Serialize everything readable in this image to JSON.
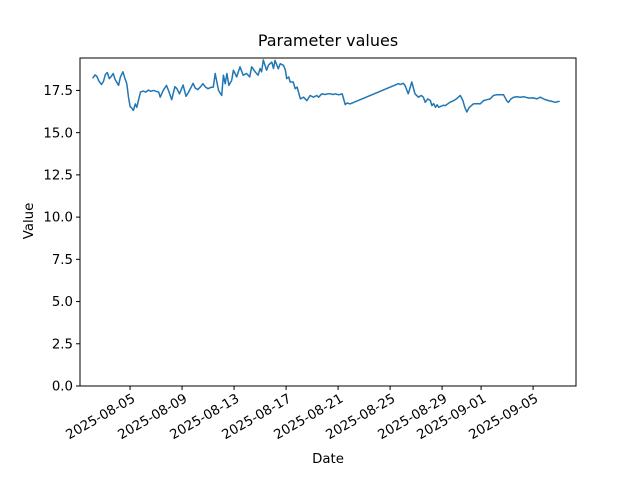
{
  "chart_data": {
    "type": "line",
    "title": "Parameter values",
    "xlabel": "Date",
    "ylabel": "Value",
    "grid": false,
    "legend": null,
    "line_color": "#1f77b4",
    "spine_color": "#000000",
    "background_color": "#ffffff",
    "x_unit": "days since 2025-08-01 00:00",
    "xlim": [
      0.15,
      38.3
    ],
    "ylim": [
      0,
      19.42
    ],
    "x_ticks": [
      {
        "t": 4,
        "label": "2025-08-05"
      },
      {
        "t": 8,
        "label": "2025-08-09"
      },
      {
        "t": 12,
        "label": "2025-08-13"
      },
      {
        "t": 16,
        "label": "2025-08-17"
      },
      {
        "t": 20,
        "label": "2025-08-21"
      },
      {
        "t": 24,
        "label": "2025-08-25"
      },
      {
        "t": 28,
        "label": "2025-08-29"
      },
      {
        "t": 31,
        "label": "2025-09-01"
      },
      {
        "t": 35,
        "label": "2025-09-05"
      }
    ],
    "y_ticks": [
      {
        "v": 0,
        "label": "0.0"
      },
      {
        "v": 2.5,
        "label": "2.5"
      },
      {
        "v": 5,
        "label": "5.0"
      },
      {
        "v": 7.5,
        "label": "7.5"
      },
      {
        "v": 10,
        "label": "10.0"
      },
      {
        "v": 12.5,
        "label": "12.5"
      },
      {
        "v": 15,
        "label": "15.0"
      },
      {
        "v": 17.5,
        "label": "17.5"
      }
    ],
    "series": [
      {
        "name": "parameter-values",
        "points": [
          [
            1.15,
            18.25
          ],
          [
            1.3,
            18.42
          ],
          [
            1.45,
            18.33
          ],
          [
            1.6,
            18.05
          ],
          [
            1.8,
            17.85
          ],
          [
            1.95,
            18.02
          ],
          [
            2.1,
            18.45
          ],
          [
            2.25,
            18.56
          ],
          [
            2.4,
            18.2
          ],
          [
            2.55,
            18.32
          ],
          [
            2.7,
            18.5
          ],
          [
            2.85,
            18.15
          ],
          [
            3.0,
            17.95
          ],
          [
            3.12,
            17.8
          ],
          [
            3.25,
            18.28
          ],
          [
            3.45,
            18.6
          ],
          [
            3.6,
            18.22
          ],
          [
            3.75,
            17.9
          ],
          [
            3.88,
            17.1
          ],
          [
            4.0,
            16.55
          ],
          [
            4.14,
            16.45
          ],
          [
            4.26,
            16.32
          ],
          [
            4.4,
            16.7
          ],
          [
            4.52,
            16.5
          ],
          [
            4.65,
            16.92
          ],
          [
            4.8,
            17.4
          ],
          [
            5.0,
            17.46
          ],
          [
            5.2,
            17.4
          ],
          [
            5.4,
            17.52
          ],
          [
            5.6,
            17.45
          ],
          [
            5.8,
            17.5
          ],
          [
            6.0,
            17.45
          ],
          [
            6.2,
            17.4
          ],
          [
            6.32,
            17.1
          ],
          [
            6.55,
            17.5
          ],
          [
            6.8,
            17.8
          ],
          [
            7.0,
            17.4
          ],
          [
            7.2,
            16.95
          ],
          [
            7.45,
            17.72
          ],
          [
            7.6,
            17.6
          ],
          [
            7.8,
            17.3
          ],
          [
            8.08,
            17.82
          ],
          [
            8.3,
            17.15
          ],
          [
            8.5,
            17.4
          ],
          [
            8.85,
            17.92
          ],
          [
            9.0,
            17.65
          ],
          [
            9.2,
            17.55
          ],
          [
            9.4,
            17.7
          ],
          [
            9.6,
            17.9
          ],
          [
            9.8,
            17.7
          ],
          [
            10.0,
            17.6
          ],
          [
            10.2,
            17.68
          ],
          [
            10.4,
            17.7
          ],
          [
            10.55,
            18.5
          ],
          [
            10.8,
            17.5
          ],
          [
            11.05,
            17.2
          ],
          [
            11.18,
            18.4
          ],
          [
            11.32,
            17.9
          ],
          [
            11.45,
            18.5
          ],
          [
            11.6,
            17.8
          ],
          [
            11.82,
            18.1
          ],
          [
            11.95,
            18.7
          ],
          [
            12.2,
            18.3
          ],
          [
            12.46,
            18.9
          ],
          [
            12.7,
            18.4
          ],
          [
            12.96,
            18.5
          ],
          [
            13.2,
            18.3
          ],
          [
            13.36,
            18.9
          ],
          [
            13.62,
            18.6
          ],
          [
            13.85,
            18.4
          ],
          [
            14.0,
            18.8
          ],
          [
            14.12,
            18.6
          ],
          [
            14.25,
            19.3
          ],
          [
            14.5,
            18.7
          ],
          [
            14.65,
            19.0
          ],
          [
            14.9,
            19.18
          ],
          [
            15.03,
            18.8
          ],
          [
            15.15,
            19.28
          ],
          [
            15.4,
            18.78
          ],
          [
            15.55,
            19.08
          ],
          [
            15.8,
            18.98
          ],
          [
            15.95,
            18.7
          ],
          [
            16.05,
            18.2
          ],
          [
            16.2,
            18.3
          ],
          [
            16.32,
            18.0
          ],
          [
            16.55,
            18.0
          ],
          [
            16.7,
            17.6
          ],
          [
            16.85,
            17.7
          ],
          [
            17.1,
            17.0
          ],
          [
            17.35,
            17.1
          ],
          [
            17.6,
            16.9
          ],
          [
            17.85,
            17.2
          ],
          [
            18.1,
            17.1
          ],
          [
            18.36,
            17.2
          ],
          [
            18.5,
            17.1
          ],
          [
            18.75,
            17.3
          ],
          [
            19.0,
            17.26
          ],
          [
            19.2,
            17.3
          ],
          [
            19.4,
            17.3
          ],
          [
            19.6,
            17.26
          ],
          [
            19.8,
            17.3
          ],
          [
            20.0,
            17.25
          ],
          [
            20.15,
            17.26
          ],
          [
            20.32,
            17.3
          ],
          [
            20.55,
            16.66
          ],
          [
            20.7,
            16.76
          ],
          [
            20.92,
            16.7
          ],
          [
            24.64,
            17.9
          ],
          [
            24.8,
            17.85
          ],
          [
            25.0,
            17.92
          ],
          [
            25.15,
            17.8
          ],
          [
            25.4,
            17.3
          ],
          [
            25.67,
            18.0
          ],
          [
            25.92,
            17.3
          ],
          [
            26.18,
            17.1
          ],
          [
            26.4,
            17.2
          ],
          [
            26.56,
            17.1
          ],
          [
            26.7,
            16.8
          ],
          [
            26.9,
            17.0
          ],
          [
            27.1,
            16.9
          ],
          [
            27.22,
            16.6
          ],
          [
            27.35,
            16.72
          ],
          [
            27.5,
            16.5
          ],
          [
            27.62,
            16.65
          ],
          [
            27.75,
            16.5
          ],
          [
            27.9,
            16.56
          ],
          [
            28.1,
            16.62
          ],
          [
            28.25,
            16.6
          ],
          [
            28.6,
            16.8
          ],
          [
            28.9,
            16.9
          ],
          [
            29.1,
            17.0
          ],
          [
            29.25,
            17.1
          ],
          [
            29.4,
            17.2
          ],
          [
            29.6,
            16.9
          ],
          [
            29.75,
            16.5
          ],
          [
            29.9,
            16.22
          ],
          [
            30.1,
            16.5
          ],
          [
            30.4,
            16.7
          ],
          [
            30.7,
            16.72
          ],
          [
            30.92,
            16.7
          ],
          [
            31.2,
            16.9
          ],
          [
            31.45,
            16.95
          ],
          [
            31.7,
            17.0
          ],
          [
            31.95,
            17.2
          ],
          [
            32.2,
            17.25
          ],
          [
            32.5,
            17.24
          ],
          [
            32.72,
            17.25
          ],
          [
            32.97,
            16.9
          ],
          [
            33.1,
            16.8
          ],
          [
            33.3,
            17.0
          ],
          [
            33.5,
            17.1
          ],
          [
            33.75,
            17.12
          ],
          [
            34.0,
            17.1
          ],
          [
            34.3,
            17.12
          ],
          [
            34.65,
            17.05
          ],
          [
            35.0,
            17.06
          ],
          [
            35.3,
            17.0
          ],
          [
            35.55,
            17.1
          ],
          [
            35.9,
            16.96
          ],
          [
            36.2,
            16.9
          ],
          [
            36.45,
            16.85
          ],
          [
            36.7,
            16.8
          ],
          [
            37.0,
            16.85
          ]
        ]
      }
    ]
  }
}
